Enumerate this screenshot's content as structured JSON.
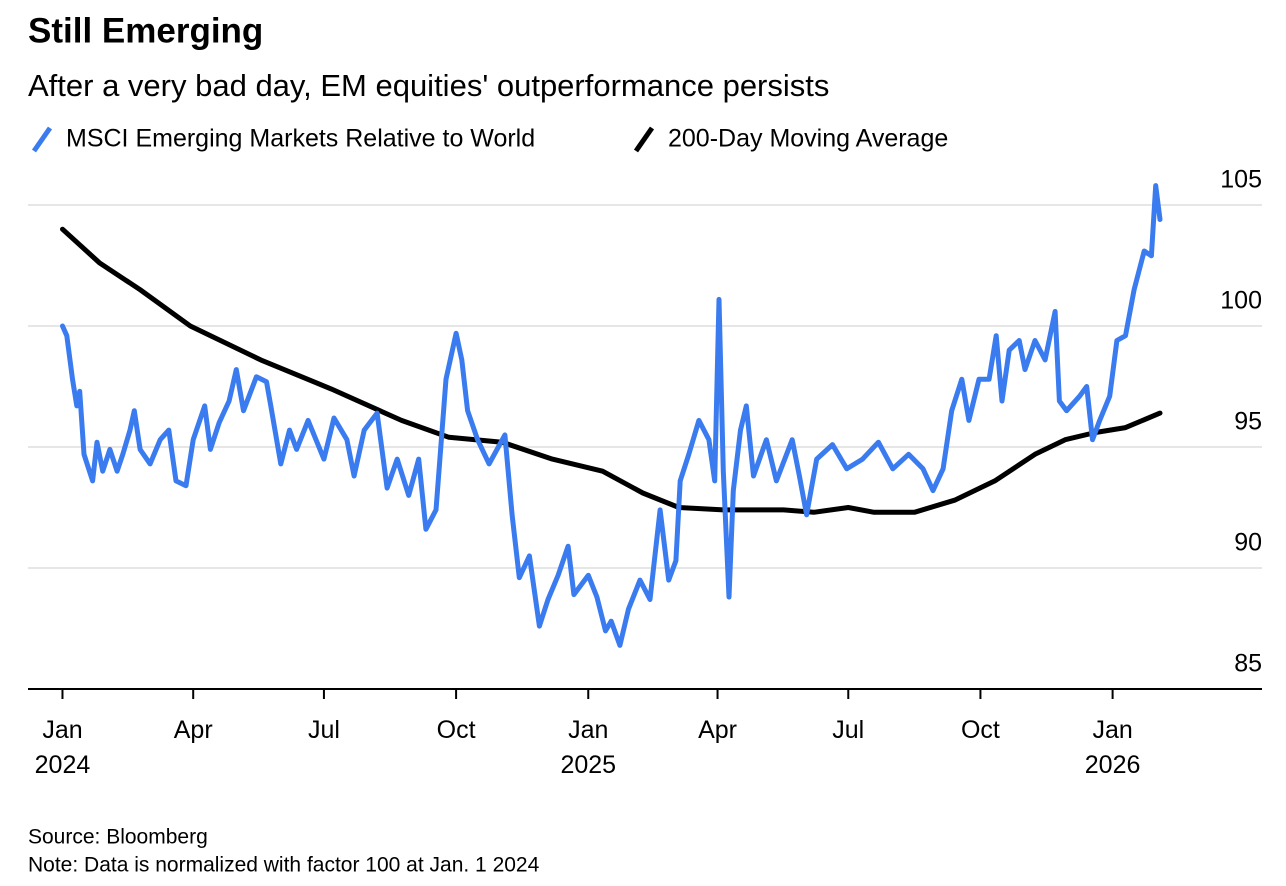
{
  "chart_data": {
    "type": "line",
    "title": "Still Emerging",
    "subtitle": "After a very bad day, EM equities' outperformance persists",
    "source": "Source: Bloomberg",
    "note": "Note: Data is normalized with factor 100 at Jan. 1 2024",
    "xlim": [
      "2023-12-08",
      "2026-04-15"
    ],
    "xticks": [
      {
        "value": "2024-01-01",
        "label": "Jan\n2024"
      },
      {
        "value": "2024-04-01",
        "label": "Apr"
      },
      {
        "value": "2024-07-01",
        "label": "Jul"
      },
      {
        "value": "2024-10-01",
        "label": "Oct"
      },
      {
        "value": "2025-01-01",
        "label": "Jan\n2025"
      },
      {
        "value": "2025-04-01",
        "label": "Apr"
      },
      {
        "value": "2025-07-01",
        "label": "Jul"
      },
      {
        "value": "2025-10-01",
        "label": "Oct"
      },
      {
        "value": "2026-01-01",
        "label": "Jan\n2026"
      }
    ],
    "ylim": [
      85,
      106
    ],
    "yticks": [
      85,
      90,
      95,
      100,
      105
    ],
    "grid": true,
    "series": [
      {
        "name": "MSCI Emerging Markets Relative to World",
        "color": "#3a7cf0",
        "x": [
          "2024-01-01",
          "2024-01-04",
          "2024-01-08",
          "2024-01-11",
          "2024-01-13",
          "2024-01-16",
          "2024-01-22",
          "2024-01-25",
          "2024-01-29",
          "2024-02-03",
          "2024-02-08",
          "2024-02-12",
          "2024-02-17",
          "2024-02-20",
          "2024-02-24",
          "2024-03-02",
          "2024-03-09",
          "2024-03-15",
          "2024-03-20",
          "2024-03-27",
          "2024-04-01",
          "2024-04-09",
          "2024-04-13",
          "2024-04-19",
          "2024-04-26",
          "2024-05-01",
          "2024-05-06",
          "2024-05-15",
          "2024-05-22",
          "2024-05-25",
          "2024-06-01",
          "2024-06-07",
          "2024-06-12",
          "2024-06-20",
          "2024-07-01",
          "2024-07-08",
          "2024-07-17",
          "2024-07-22",
          "2024-07-29",
          "2024-08-07",
          "2024-08-14",
          "2024-08-21",
          "2024-08-29",
          "2024-09-05",
          "2024-09-10",
          "2024-09-17",
          "2024-09-24",
          "2024-10-01",
          "2024-10-05",
          "2024-10-09",
          "2024-10-16",
          "2024-10-24",
          "2024-11-04",
          "2024-11-09",
          "2024-11-14",
          "2024-11-21",
          "2024-11-28",
          "2024-12-04",
          "2024-12-11",
          "2024-12-18",
          "2024-12-22",
          "2025-01-01",
          "2025-01-07",
          "2025-01-13",
          "2025-01-17",
          "2025-01-23",
          "2025-01-29",
          "2025-02-06",
          "2025-02-13",
          "2025-02-20",
          "2025-02-26",
          "2025-03-03",
          "2025-03-06",
          "2025-03-12",
          "2025-03-19",
          "2025-03-26",
          "2025-03-30",
          "2025-04-02",
          "2025-04-05",
          "2025-04-09",
          "2025-04-12",
          "2025-04-17",
          "2025-04-21",
          "2025-04-26",
          "2025-05-05",
          "2025-05-12",
          "2025-05-23",
          "2025-05-28",
          "2025-06-02",
          "2025-06-09",
          "2025-06-20",
          "2025-06-30",
          "2025-07-11",
          "2025-07-22",
          "2025-08-01",
          "2025-08-12",
          "2025-08-22",
          "2025-08-29",
          "2025-09-05",
          "2025-09-11",
          "2025-09-18",
          "2025-09-23",
          "2025-09-30",
          "2025-10-07",
          "2025-10-12",
          "2025-10-16",
          "2025-10-21",
          "2025-10-28",
          "2025-11-01",
          "2025-11-08",
          "2025-11-15",
          "2025-11-22",
          "2025-11-25",
          "2025-11-30",
          "2025-12-09",
          "2025-12-14",
          "2025-12-18",
          "2025-12-23",
          "2025-12-30",
          "2026-01-04",
          "2026-01-10",
          "2026-01-16",
          "2026-01-23",
          "2026-01-28",
          "2026-01-31",
          "2026-02-03"
        ],
        "values": [
          100,
          99.6,
          97.8,
          96.7,
          97.3,
          94.7,
          93.6,
          95.2,
          94.0,
          94.9,
          94.0,
          94.7,
          95.7,
          96.5,
          94.9,
          94.3,
          95.3,
          95.7,
          93.6,
          93.4,
          95.3,
          96.7,
          94.9,
          96.0,
          96.9,
          98.2,
          96.5,
          97.9,
          97.7,
          96.7,
          94.3,
          95.7,
          94.9,
          96.1,
          94.5,
          96.2,
          95.3,
          93.8,
          95.7,
          96.4,
          93.3,
          94.5,
          93.0,
          94.5,
          91.6,
          92.4,
          97.8,
          99.7,
          98.6,
          96.5,
          95.3,
          94.3,
          95.5,
          92.2,
          89.6,
          90.5,
          87.6,
          88.7,
          89.7,
          90.9,
          88.9,
          89.7,
          88.8,
          87.4,
          87.8,
          86.8,
          88.3,
          89.5,
          88.7,
          92.4,
          89.5,
          90.3,
          93.6,
          94.7,
          96.1,
          95.3,
          93.6,
          101.1,
          94.0,
          88.8,
          93.2,
          95.7,
          96.7,
          93.8,
          95.3,
          93.6,
          95.3,
          93.8,
          92.2,
          94.5,
          95.1,
          94.1,
          94.5,
          95.2,
          94.1,
          94.7,
          94.1,
          93.2,
          94.1,
          96.5,
          97.8,
          96.1,
          97.8,
          97.8,
          99.6,
          96.9,
          99.0,
          99.4,
          98.2,
          99.4,
          98.6,
          100.6,
          96.9,
          96.5,
          97.1,
          97.5,
          95.3,
          96.1,
          97.1,
          99.4,
          99.6,
          101.5,
          103.1,
          102.9,
          105.8,
          104.4
        ]
      },
      {
        "name": "200-Day Moving Average",
        "color": "#000000",
        "x": [
          "2024-01-01",
          "2024-01-27",
          "2024-02-24",
          "2024-03-30",
          "2024-05-18",
          "2024-07-06",
          "2024-08-24",
          "2024-09-26",
          "2024-11-02",
          "2024-12-07",
          "2025-01-11",
          "2025-02-08",
          "2025-03-05",
          "2025-04-05",
          "2025-05-17",
          "2025-06-07",
          "2025-07-01",
          "2025-07-19",
          "2025-08-16",
          "2025-09-13",
          "2025-10-11",
          "2025-11-08",
          "2025-11-29",
          "2025-12-20",
          "2026-01-10",
          "2026-02-03"
        ],
        "values": [
          104.0,
          102.6,
          101.5,
          100.0,
          98.6,
          97.4,
          96.1,
          95.4,
          95.2,
          94.5,
          94.0,
          93.1,
          92.5,
          92.4,
          92.4,
          92.3,
          92.5,
          92.3,
          92.3,
          92.8,
          93.6,
          94.7,
          95.3,
          95.6,
          95.8,
          96.4
        ]
      }
    ]
  }
}
